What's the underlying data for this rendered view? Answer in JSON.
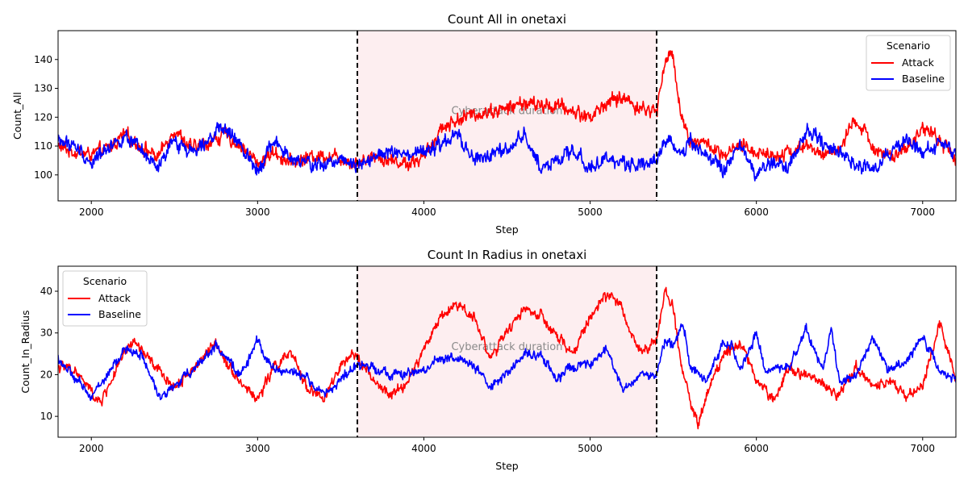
{
  "chart_data": [
    {
      "type": "line",
      "title": "Count All in onetaxi",
      "xlabel": "Step",
      "ylabel": "Count_All",
      "xlim": [
        1800,
        7200
      ],
      "ylim": [
        91,
        150
      ],
      "xticks": [
        2000,
        3000,
        4000,
        5000,
        6000,
        7000
      ],
      "yticks": [
        100,
        110,
        120,
        130,
        140
      ],
      "legend": {
        "title": "Scenario",
        "position": "upper-right"
      },
      "shaded_region": {
        "x": [
          3600,
          5400
        ],
        "label": "Cyberattack duration",
        "color": "#fdeef0"
      },
      "vlines": [
        3600,
        5400
      ],
      "series": [
        {
          "name": "Attack",
          "color": "#ff0000",
          "x": [
            1800,
            1900,
            2000,
            2100,
            2200,
            2300,
            2400,
            2500,
            2600,
            2700,
            2800,
            2900,
            3000,
            3100,
            3200,
            3300,
            3400,
            3500,
            3600,
            3700,
            3800,
            3900,
            4000,
            4100,
            4200,
            4300,
            4400,
            4500,
            4600,
            4700,
            4800,
            4900,
            5000,
            5100,
            5200,
            5300,
            5400,
            5450,
            5500,
            5550,
            5600,
            5700,
            5800,
            5900,
            6000,
            6100,
            6200,
            6300,
            6400,
            6500,
            6600,
            6700,
            6800,
            6900,
            7000,
            7100,
            7200
          ],
          "y": [
            110,
            108,
            107,
            109,
            114,
            110,
            106,
            116,
            109,
            111,
            114,
            110,
            104,
            108,
            104,
            106,
            107,
            106,
            104,
            107,
            105,
            104,
            106,
            116,
            119,
            121,
            122,
            123,
            125,
            124,
            124,
            122,
            120,
            125,
            127,
            123,
            122,
            140,
            141,
            120,
            112,
            111,
            106,
            110,
            108,
            107,
            108,
            110,
            107,
            109,
            119,
            110,
            106,
            108,
            117,
            112,
            106
          ],
          "noise": 3.0
        },
        {
          "name": "Baseline",
          "color": "#0000ff",
          "x": [
            1800,
            1900,
            2000,
            2100,
            2200,
            2300,
            2400,
            2500,
            2600,
            2700,
            2800,
            2900,
            3000,
            3100,
            3200,
            3300,
            3400,
            3500,
            3600,
            3700,
            3800,
            3900,
            4000,
            4100,
            4200,
            4300,
            4400,
            4500,
            4600,
            4700,
            4800,
            4900,
            5000,
            5100,
            5200,
            5300,
            5400,
            5450,
            5500,
            5550,
            5600,
            5700,
            5800,
            5900,
            6000,
            6100,
            6200,
            6300,
            6400,
            6500,
            6600,
            6700,
            6800,
            6900,
            7000,
            7100,
            7200
          ],
          "y": [
            112,
            110,
            104,
            110,
            113,
            108,
            102,
            112,
            108,
            113,
            116,
            110,
            102,
            112,
            105,
            104,
            103,
            106,
            104,
            106,
            108,
            106,
            108,
            110,
            114,
            105,
            107,
            108,
            114,
            103,
            105,
            108,
            103,
            105,
            104,
            104,
            105,
            112,
            110,
            108,
            112,
            107,
            101,
            110,
            100,
            104,
            103,
            116,
            111,
            108,
            104,
            102,
            107,
            112,
            108,
            110,
            108
          ],
          "noise": 3.0
        }
      ]
    },
    {
      "type": "line",
      "title": "Count In Radius in onetaxi",
      "xlabel": "Step",
      "ylabel": "Count_In_Radius",
      "xlim": [
        1800,
        7200
      ],
      "ylim": [
        5,
        46
      ],
      "xticks": [
        2000,
        3000,
        4000,
        5000,
        6000,
        7000
      ],
      "yticks": [
        10,
        20,
        30,
        40
      ],
      "legend": {
        "title": "Scenario",
        "position": "upper-left"
      },
      "shaded_region": {
        "x": [
          3600,
          5400
        ],
        "label": "Cyberattack duration",
        "color": "#fdeef0"
      },
      "vlines": [
        3600,
        5400
      ],
      "series": [
        {
          "name": "Attack",
          "color": "#ff0000",
          "x": [
            1800,
            1900,
            2000,
            2050,
            2100,
            2200,
            2250,
            2300,
            2400,
            2500,
            2600,
            2700,
            2750,
            2800,
            2900,
            3000,
            3100,
            3200,
            3300,
            3400,
            3500,
            3600,
            3700,
            3800,
            3900,
            4000,
            4100,
            4200,
            4300,
            4400,
            4500,
            4600,
            4700,
            4800,
            4900,
            5000,
            5100,
            5150,
            5200,
            5300,
            5400,
            5450,
            5500,
            5550,
            5600,
            5650,
            5700,
            5800,
            5900,
            6000,
            6100,
            6200,
            6300,
            6400,
            6500,
            6600,
            6700,
            6800,
            6900,
            7000,
            7100,
            7200
          ],
          "y": [
            22,
            21,
            16,
            13,
            17,
            25,
            28,
            26,
            21,
            17,
            21,
            25,
            28,
            24,
            18,
            14,
            22,
            25,
            17,
            14,
            22,
            25,
            18,
            15,
            18,
            26,
            34,
            37,
            34,
            24,
            30,
            36,
            34,
            29,
            25,
            34,
            39,
            39,
            34,
            26,
            28,
            40,
            36,
            22,
            14,
            8,
            15,
            25,
            28,
            19,
            14,
            22,
            20,
            18,
            15,
            22,
            17,
            19,
            15,
            17,
            33,
            19
          ],
          "noise": 1.6
        },
        {
          "name": "Baseline",
          "color": "#0000ff",
          "x": [
            1800,
            1900,
            2000,
            2100,
            2200,
            2300,
            2400,
            2500,
            2600,
            2700,
            2750,
            2800,
            2900,
            3000,
            3100,
            3200,
            3300,
            3400,
            3500,
            3600,
            3700,
            3800,
            3900,
            4000,
            4100,
            4200,
            4300,
            4400,
            4500,
            4600,
            4700,
            4800,
            4900,
            5000,
            5100,
            5200,
            5300,
            5400,
            5450,
            5500,
            5560,
            5600,
            5700,
            5800,
            5850,
            5900,
            6000,
            6050,
            6100,
            6200,
            6300,
            6400,
            6450,
            6500,
            6600,
            6700,
            6800,
            6900,
            7000,
            7100,
            7200
          ],
          "y": [
            24,
            19,
            15,
            20,
            26,
            25,
            15,
            17,
            21,
            25,
            27,
            24,
            20,
            28,
            21,
            21,
            19,
            15,
            19,
            22,
            22,
            20,
            20,
            21,
            24,
            24,
            22,
            17,
            20,
            25,
            25,
            19,
            22,
            22,
            26,
            16,
            20,
            20,
            28,
            27,
            33,
            22,
            18,
            28,
            27,
            21,
            30,
            21,
            21,
            22,
            31,
            21,
            32,
            18,
            20,
            29,
            21,
            23,
            29,
            21,
            19
          ],
          "noise": 1.4
        }
      ]
    }
  ]
}
